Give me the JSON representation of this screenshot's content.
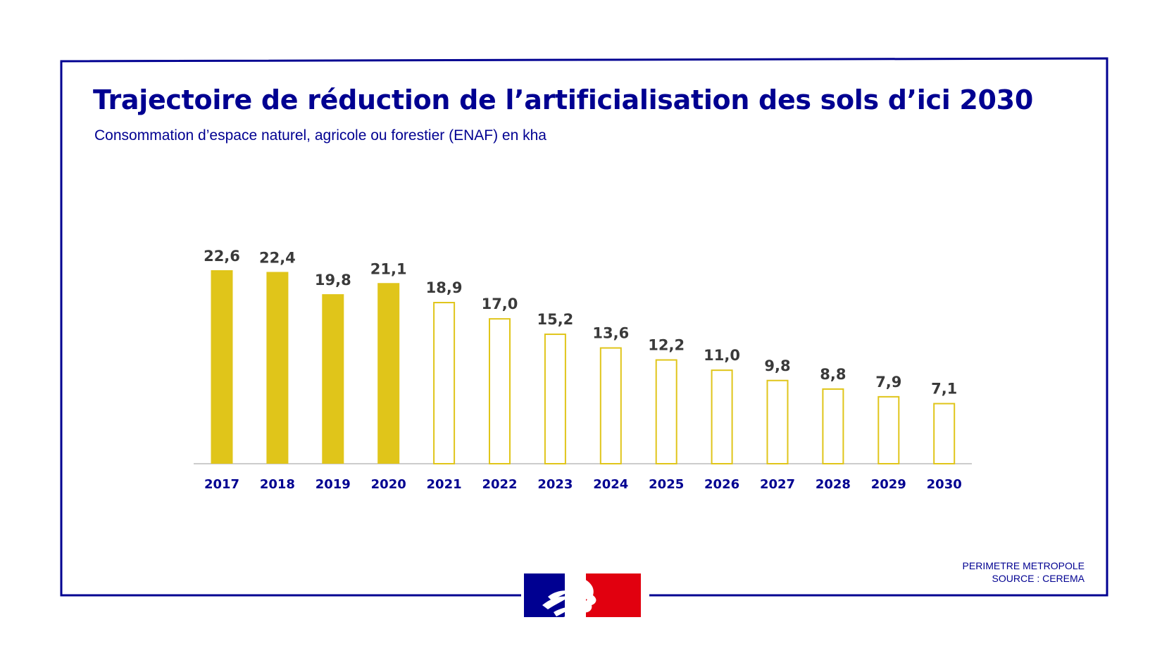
{
  "title": "Trajectoire de réduction de l’artificialisation des sols d’ici 2030",
  "subtitle": "Consommation d’espace naturel, agricole ou forestier (ENAF) en kha",
  "footnote": {
    "line1": "PERIMETRE METROPOLE",
    "line2": "SOURCE : CEREMA"
  },
  "logo": {
    "icon": "marianne-logo",
    "colors": [
      "#000091",
      "#ffffff",
      "#e1000f"
    ]
  },
  "colors": {
    "frame": "#000091",
    "bar": "#e0c51a",
    "axis": "#cccccc",
    "value_label": "#3a3a3a",
    "category_label": "#000091"
  },
  "chart_data": {
    "type": "bar",
    "categories": [
      "2017",
      "2018",
      "2019",
      "2020",
      "2021",
      "2022",
      "2023",
      "2024",
      "2025",
      "2026",
      "2027",
      "2028",
      "2029",
      "2030"
    ],
    "values": [
      22.6,
      22.4,
      19.8,
      21.1,
      18.9,
      17.0,
      15.2,
      13.6,
      12.2,
      11.0,
      9.8,
      8.8,
      7.9,
      7.1
    ],
    "data_labels": [
      "22,6",
      "22,4",
      "19,8",
      "21,1",
      "18,9",
      "17,0",
      "15,2",
      "13,6",
      "12,2",
      "11,0",
      "9,8",
      "8,8",
      "7,9",
      "7,1"
    ],
    "observed": [
      true,
      true,
      true,
      true,
      false,
      false,
      false,
      false,
      false,
      false,
      false,
      false,
      false,
      false
    ],
    "title": "Trajectoire de réduction de l’artificialisation des sols d’ici 2030",
    "subtitle": "Consommation d’espace naturel, agricole ou forestier (ENAF) en kha",
    "xlabel": "",
    "ylabel": "",
    "ylim": [
      0,
      22.6
    ],
    "grid": false,
    "legend": "none"
  }
}
